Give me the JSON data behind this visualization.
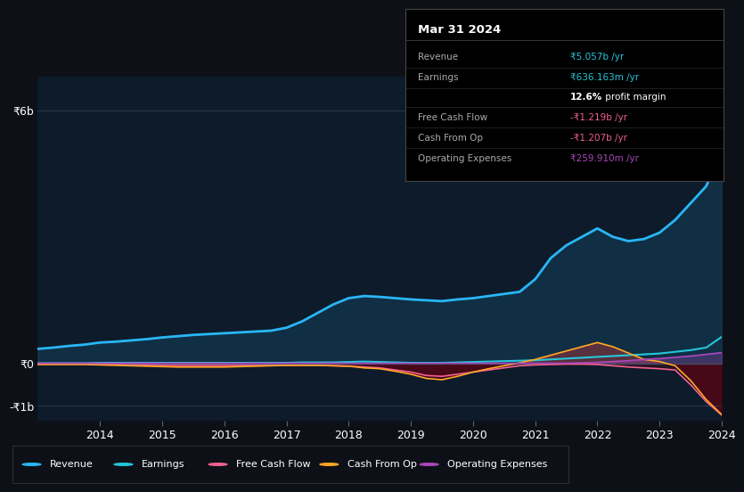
{
  "background_color": "#0d1117",
  "plot_bg_color": "#0d1b2a",
  "years": [
    2013.0,
    2013.25,
    2013.5,
    2013.75,
    2014.0,
    2014.25,
    2014.5,
    2014.75,
    2015.0,
    2015.25,
    2015.5,
    2015.75,
    2016.0,
    2016.25,
    2016.5,
    2016.75,
    2017.0,
    2017.25,
    2017.5,
    2017.75,
    2018.0,
    2018.25,
    2018.5,
    2018.75,
    2019.0,
    2019.25,
    2019.5,
    2019.75,
    2020.0,
    2020.25,
    2020.5,
    2020.75,
    2021.0,
    2021.25,
    2021.5,
    2021.75,
    2022.0,
    2022.25,
    2022.5,
    2022.75,
    2023.0,
    2023.25,
    2023.5,
    2023.75,
    2024.0
  ],
  "revenue": [
    0.35,
    0.38,
    0.42,
    0.45,
    0.5,
    0.52,
    0.55,
    0.58,
    0.62,
    0.65,
    0.68,
    0.7,
    0.72,
    0.74,
    0.76,
    0.78,
    0.85,
    1.0,
    1.2,
    1.4,
    1.55,
    1.6,
    1.58,
    1.55,
    1.52,
    1.5,
    1.48,
    1.52,
    1.55,
    1.6,
    1.65,
    1.7,
    2.0,
    2.5,
    2.8,
    3.0,
    3.2,
    3.0,
    2.9,
    2.95,
    3.1,
    3.4,
    3.8,
    4.2,
    5.057
  ],
  "earnings": [
    0.01,
    0.01,
    0.01,
    0.01,
    0.02,
    0.02,
    0.02,
    0.02,
    0.02,
    0.02,
    0.02,
    0.02,
    0.02,
    0.02,
    0.02,
    0.02,
    0.02,
    0.03,
    0.03,
    0.03,
    0.04,
    0.05,
    0.04,
    0.03,
    0.02,
    0.02,
    0.02,
    0.03,
    0.04,
    0.05,
    0.06,
    0.07,
    0.08,
    0.1,
    0.12,
    0.14,
    0.16,
    0.18,
    0.2,
    0.22,
    0.24,
    0.28,
    0.32,
    0.38,
    0.636
  ],
  "free_cash_flow": [
    -0.01,
    -0.01,
    -0.01,
    -0.01,
    -0.02,
    -0.02,
    -0.03,
    -0.03,
    -0.04,
    -0.04,
    -0.04,
    -0.04,
    -0.04,
    -0.04,
    -0.04,
    -0.04,
    -0.04,
    -0.04,
    -0.04,
    -0.05,
    -0.06,
    -0.08,
    -0.1,
    -0.15,
    -0.2,
    -0.28,
    -0.3,
    -0.25,
    -0.2,
    -0.15,
    -0.1,
    -0.05,
    -0.03,
    -0.02,
    -0.01,
    -0.01,
    -0.02,
    -0.05,
    -0.08,
    -0.1,
    -0.12,
    -0.15,
    -0.5,
    -0.9,
    -1.219
  ],
  "cash_from_op": [
    -0.02,
    -0.02,
    -0.02,
    -0.02,
    -0.03,
    -0.04,
    -0.05,
    -0.06,
    -0.07,
    -0.08,
    -0.08,
    -0.08,
    -0.08,
    -0.07,
    -0.06,
    -0.05,
    -0.04,
    -0.04,
    -0.04,
    -0.05,
    -0.06,
    -0.1,
    -0.12,
    -0.18,
    -0.25,
    -0.35,
    -0.38,
    -0.3,
    -0.2,
    -0.12,
    -0.05,
    0.02,
    0.1,
    0.2,
    0.3,
    0.4,
    0.5,
    0.4,
    0.25,
    0.1,
    0.05,
    -0.05,
    -0.4,
    -0.85,
    -1.207
  ],
  "operating_expenses": [
    0.01,
    0.01,
    0.01,
    0.01,
    0.01,
    0.01,
    0.01,
    0.01,
    0.01,
    0.01,
    0.01,
    0.01,
    0.01,
    0.01,
    0.01,
    0.01,
    0.01,
    0.01,
    0.01,
    0.01,
    0.01,
    0.01,
    0.01,
    0.01,
    0.01,
    0.01,
    0.01,
    0.01,
    0.01,
    0.01,
    0.01,
    0.01,
    0.01,
    0.01,
    0.01,
    0.02,
    0.03,
    0.05,
    0.07,
    0.1,
    0.12,
    0.15,
    0.18,
    0.22,
    0.2599
  ],
  "colors": {
    "revenue": "#29b6f6",
    "earnings": "#26c6da",
    "free_cash_flow": "#f06292",
    "cash_from_op": "#ffa726",
    "operating_expenses": "#ab47bc"
  },
  "ytick_labels": [
    "-₹1b",
    "₹0",
    "₹6b"
  ],
  "ytick_vals": [
    -1.0,
    0.0,
    6.0
  ],
  "xticks": [
    2014,
    2015,
    2016,
    2017,
    2018,
    2019,
    2020,
    2021,
    2022,
    2023,
    2024
  ],
  "info_box": {
    "title": "Mar 31 2024",
    "rows": [
      {
        "label": "Revenue",
        "value": "₹5.057b /yr",
        "value_color": "#26c6da",
        "bold_part": null
      },
      {
        "label": "Earnings",
        "value": "₹636.163m /yr",
        "value_color": "#26c6da",
        "bold_part": null
      },
      {
        "label": "",
        "value": "12.6% profit margin",
        "value_color": "#ffffff",
        "bold_part": "12.6%"
      },
      {
        "label": "Free Cash Flow",
        "value": "-₹1.219b /yr",
        "value_color": "#f06292",
        "bold_part": null
      },
      {
        "label": "Cash From Op",
        "value": "-₹1.207b /yr",
        "value_color": "#f06292",
        "bold_part": null
      },
      {
        "label": "Operating Expenses",
        "value": "₹259.910m /yr",
        "value_color": "#ab47bc",
        "bold_part": null
      }
    ]
  },
  "legend": [
    {
      "label": "Revenue",
      "color": "#29b6f6"
    },
    {
      "label": "Earnings",
      "color": "#26c6da"
    },
    {
      "label": "Free Cash Flow",
      "color": "#f06292"
    },
    {
      "label": "Cash From Op",
      "color": "#ffa726"
    },
    {
      "label": "Operating Expenses",
      "color": "#ab47bc"
    }
  ]
}
